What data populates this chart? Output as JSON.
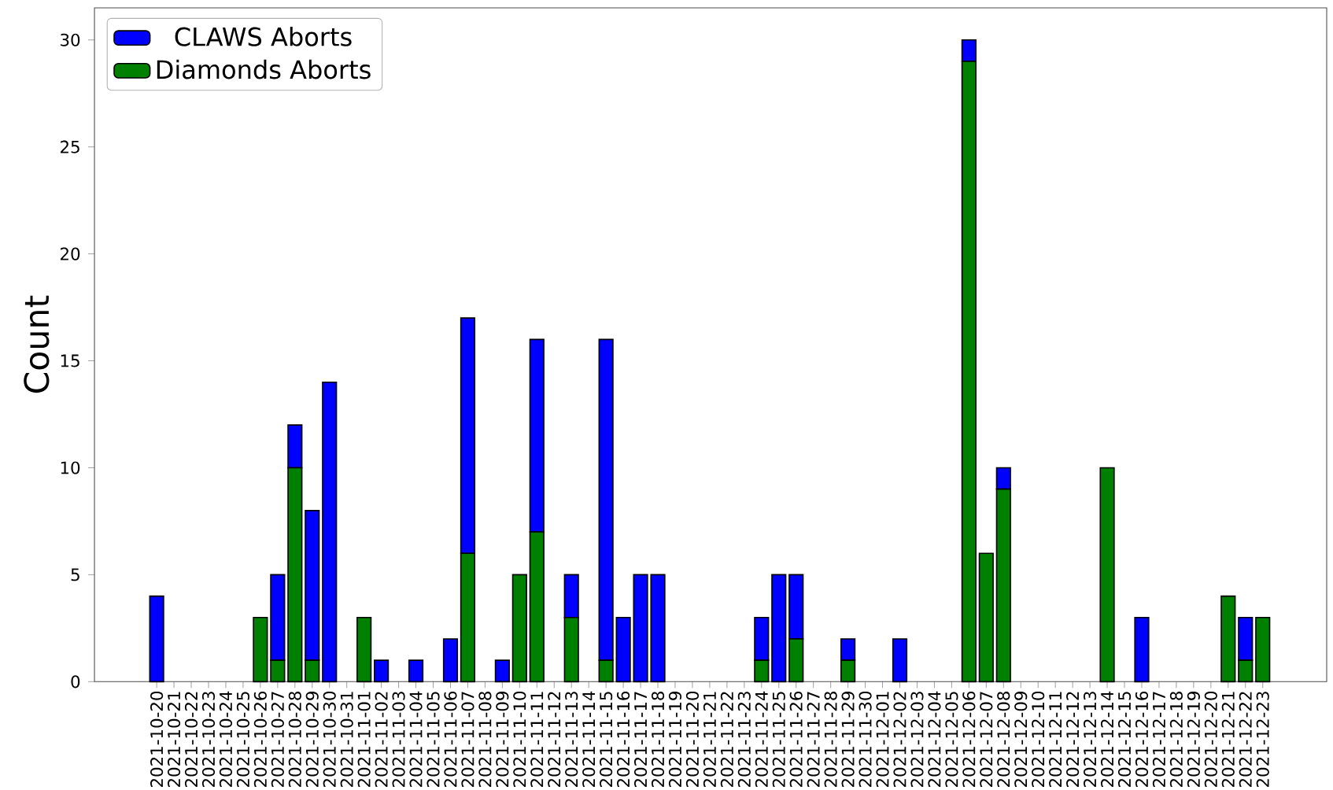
{
  "chart_data": {
    "type": "bar",
    "stacked": true,
    "ylabel": "Count",
    "legend": "top left",
    "categories": [
      "2021-10-20",
      "2021-10-21",
      "2021-10-22",
      "2021-10-23",
      "2021-10-24",
      "2021-10-25",
      "2021-10-26",
      "2021-10-27",
      "2021-10-28",
      "2021-10-29",
      "2021-10-30",
      "2021-10-31",
      "2021-11-01",
      "2021-11-02",
      "2021-11-03",
      "2021-11-04",
      "2021-11-05",
      "2021-11-06",
      "2021-11-07",
      "2021-11-08",
      "2021-11-09",
      "2021-11-10",
      "2021-11-11",
      "2021-11-12",
      "2021-11-13",
      "2021-11-14",
      "2021-11-15",
      "2021-11-16",
      "2021-11-17",
      "2021-11-18",
      "2021-11-19",
      "2021-11-20",
      "2021-11-21",
      "2021-11-22",
      "2021-11-23",
      "2021-11-24",
      "2021-11-25",
      "2021-11-26",
      "2021-11-27",
      "2021-11-28",
      "2021-11-29",
      "2021-11-30",
      "2021-12-01",
      "2021-12-02",
      "2021-12-03",
      "2021-12-04",
      "2021-12-05",
      "2021-12-06",
      "2021-12-07",
      "2021-12-08",
      "2021-12-09",
      "2021-12-10",
      "2021-12-11",
      "2021-12-12",
      "2021-12-13",
      "2021-12-14",
      "2021-12-15",
      "2021-12-16",
      "2021-12-17",
      "2021-12-18",
      "2021-12-19",
      "2021-12-20",
      "2021-12-21",
      "2021-12-22",
      "2021-12-23"
    ],
    "series": [
      {
        "name": "Diamonds Aborts",
        "color": "#008000",
        "values": [
          0,
          0,
          0,
          0,
          0,
          0,
          3,
          1,
          10,
          1,
          0,
          0,
          3,
          0,
          0,
          0,
          0,
          0,
          6,
          0,
          0,
          5,
          7,
          0,
          3,
          0,
          1,
          0,
          0,
          0,
          0,
          0,
          0,
          0,
          0,
          1,
          0,
          2,
          0,
          0,
          1,
          0,
          0,
          0,
          0,
          0,
          0,
          29,
          6,
          9,
          0,
          0,
          0,
          0,
          0,
          10,
          0,
          0,
          0,
          0,
          0,
          0,
          4,
          1,
          3
        ]
      },
      {
        "name": "CLAWS Aborts",
        "color": "#0000ff",
        "values": [
          4,
          0,
          0,
          0,
          0,
          0,
          0,
          4,
          2,
          7,
          14,
          0,
          0,
          1,
          0,
          1,
          0,
          2,
          11,
          0,
          1,
          0,
          9,
          0,
          2,
          0,
          15,
          3,
          5,
          5,
          0,
          0,
          0,
          0,
          0,
          2,
          5,
          3,
          0,
          0,
          1,
          0,
          0,
          2,
          0,
          0,
          0,
          1,
          0,
          1,
          0,
          0,
          0,
          0,
          0,
          0,
          0,
          3,
          0,
          0,
          0,
          0,
          0,
          2,
          0
        ]
      }
    ],
    "ylim": [
      0,
      31.5
    ],
    "yticks": [
      0,
      5,
      10,
      15,
      20,
      25,
      30
    ]
  }
}
